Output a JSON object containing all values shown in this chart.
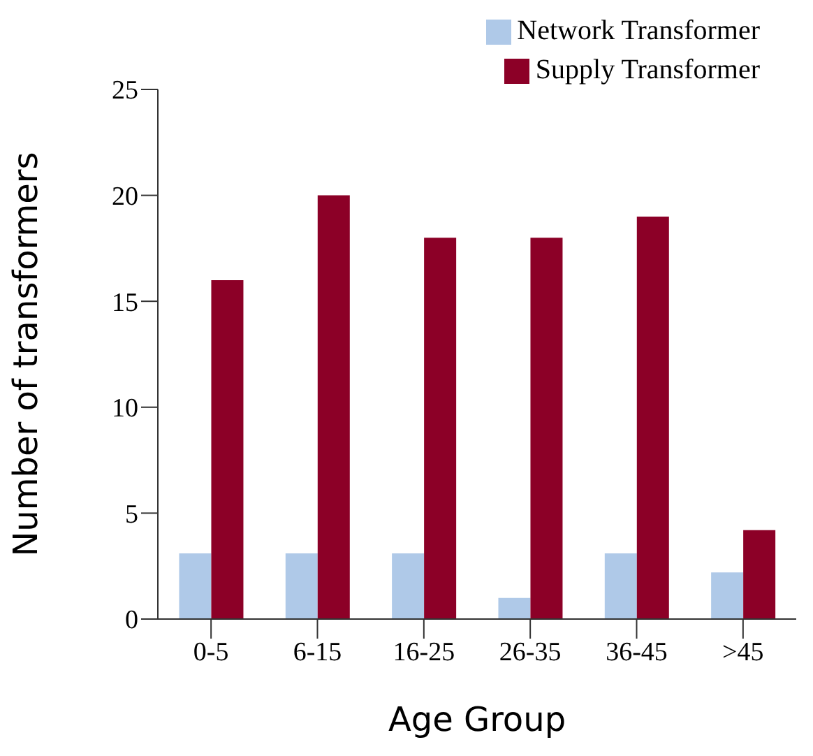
{
  "chart_data": {
    "type": "bar",
    "xlabel": "Age Group",
    "ylabel": "Number of transformers",
    "categories": [
      "0-5",
      "6-15",
      "16-25",
      "26-35",
      "36-45",
      ">45"
    ],
    "series": [
      {
        "name": "Network Transformer",
        "color": "#afc9e8",
        "values": [
          3.1,
          3.1,
          3.1,
          1,
          3.1,
          2.2
        ]
      },
      {
        "name": "Supply Transformer",
        "color": "#8c0027",
        "values": [
          16,
          20,
          18,
          18,
          19,
          4.2
        ]
      }
    ],
    "ylim": [
      0,
      25
    ],
    "yticks": [
      0,
      5,
      10,
      15,
      20,
      25
    ],
    "grid": false,
    "legend": "top right"
  }
}
